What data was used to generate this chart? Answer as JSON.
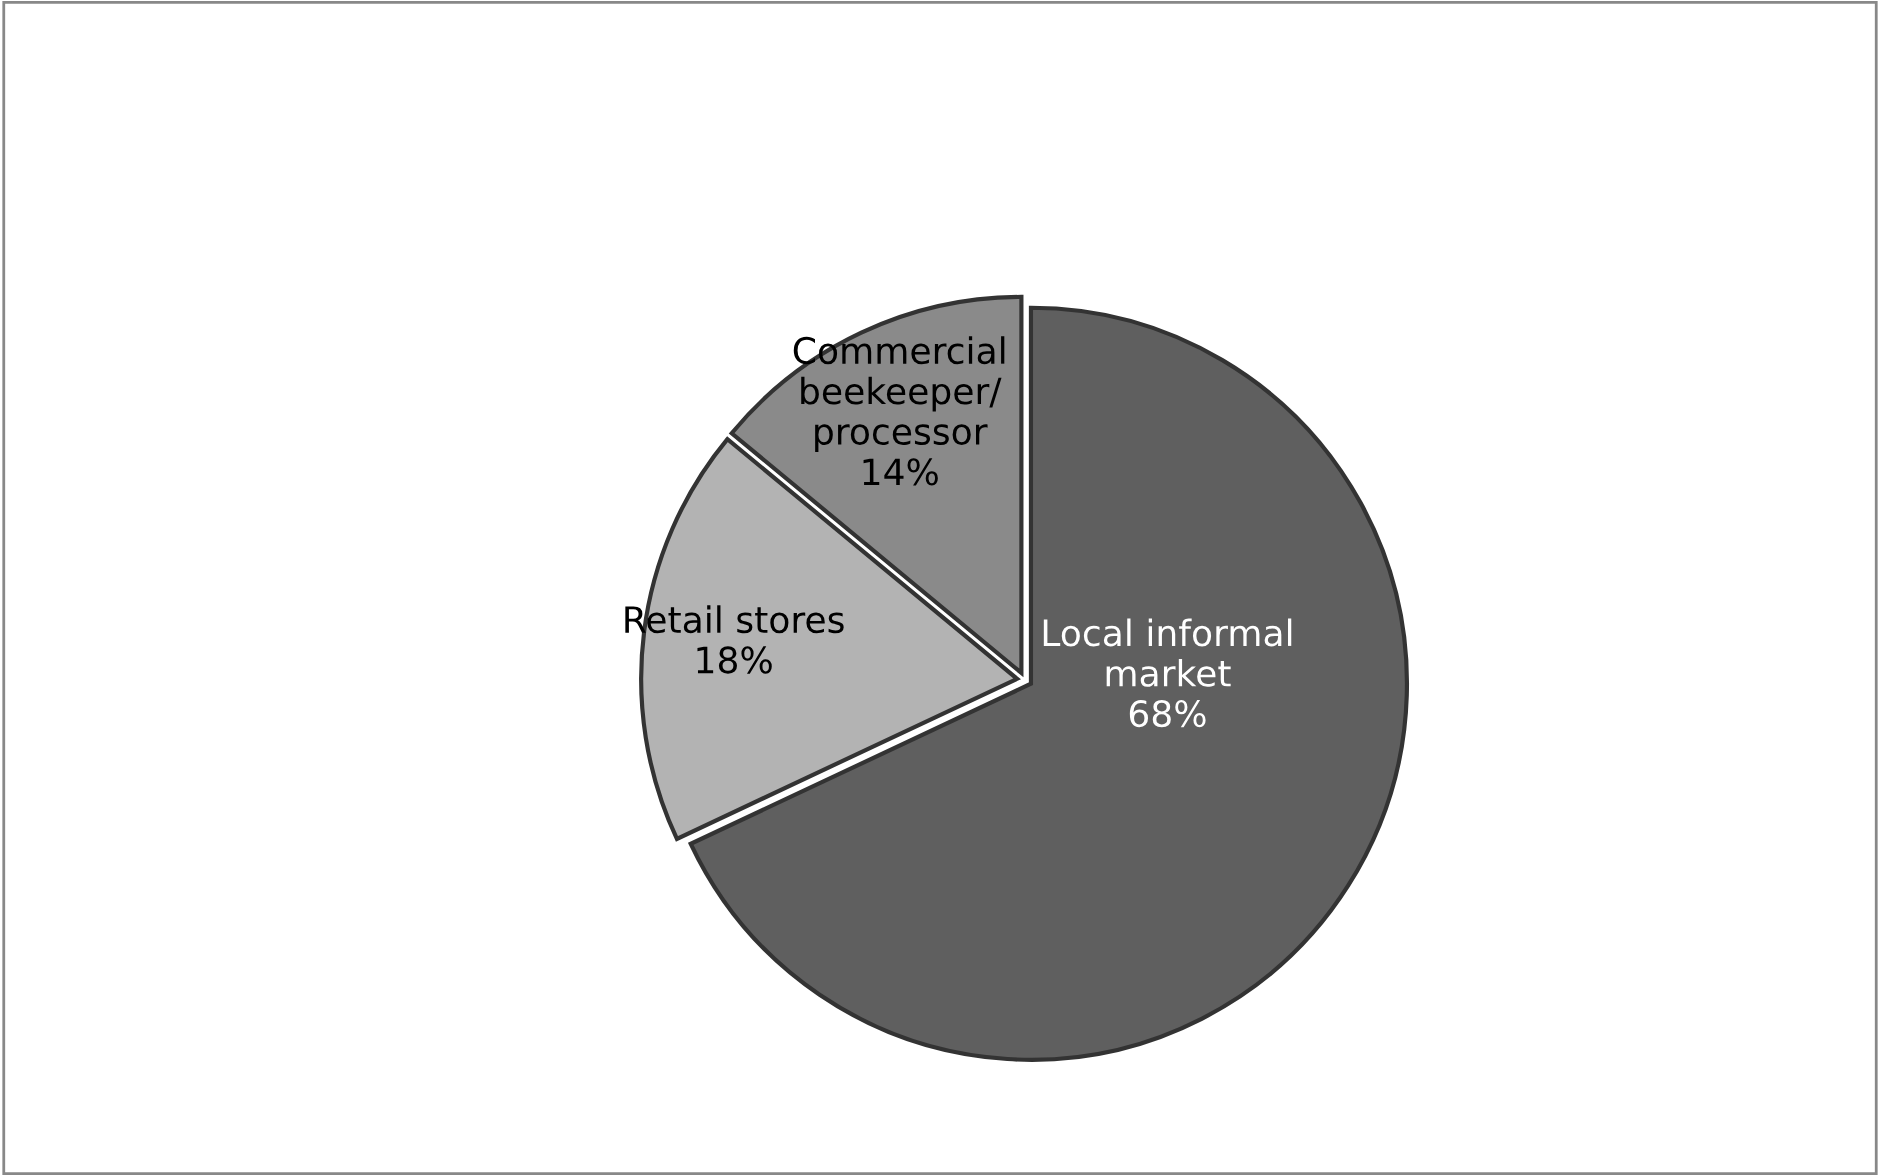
{
  "chart_data": {
    "type": "pie",
    "categories": [
      "Local informal\nmarket",
      "Retail stores",
      "Commercial\nbeekeeper/\nprocessor"
    ],
    "values": [
      68,
      18,
      14
    ],
    "value_labels": [
      "68%",
      "18%",
      "14%"
    ],
    "colors": [
      "#5f5f5f",
      "#b3b3b3",
      "#8a8a8a"
    ],
    "legend": false
  }
}
